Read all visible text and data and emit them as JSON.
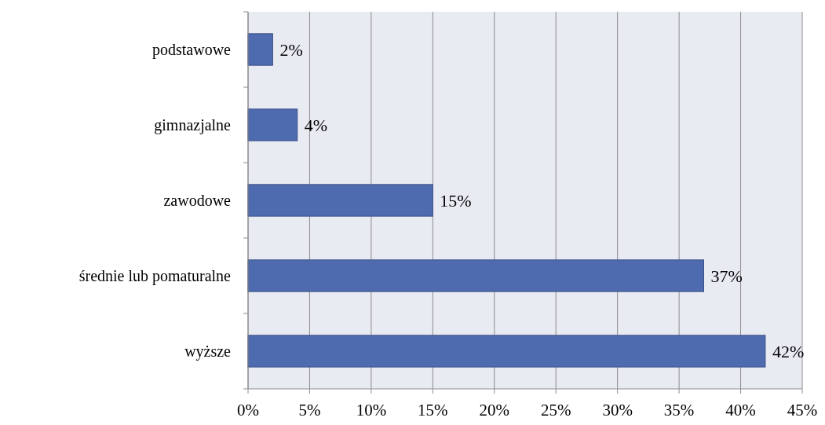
{
  "chart_data": {
    "type": "bar",
    "orientation": "horizontal",
    "categories": [
      "podstawowe",
      "gimnazjalne",
      "zawodowe",
      "średnie lub pomaturalne",
      "wyższe"
    ],
    "values": [
      2,
      4,
      15,
      37,
      42
    ],
    "color": "#4f6bb0",
    "xlim": [
      0,
      45
    ],
    "xticks": [
      {
        "value": 0,
        "label": "0%"
      },
      {
        "value": 5,
        "label": "5%"
      },
      {
        "value": 10,
        "label": "10%"
      },
      {
        "value": 15,
        "label": "15%"
      },
      {
        "value": 20,
        "label": "20%"
      },
      {
        "value": 25,
        "label": "25%"
      },
      {
        "value": 30,
        "label": "30%"
      },
      {
        "value": 35,
        "label": "35%"
      },
      {
        "value": 40,
        "label": "40%"
      },
      {
        "value": 45,
        "label": "45%"
      }
    ],
    "value_labels": [
      "2%",
      "4%",
      "15%",
      "37%",
      "42%"
    ],
    "grid": "x"
  }
}
